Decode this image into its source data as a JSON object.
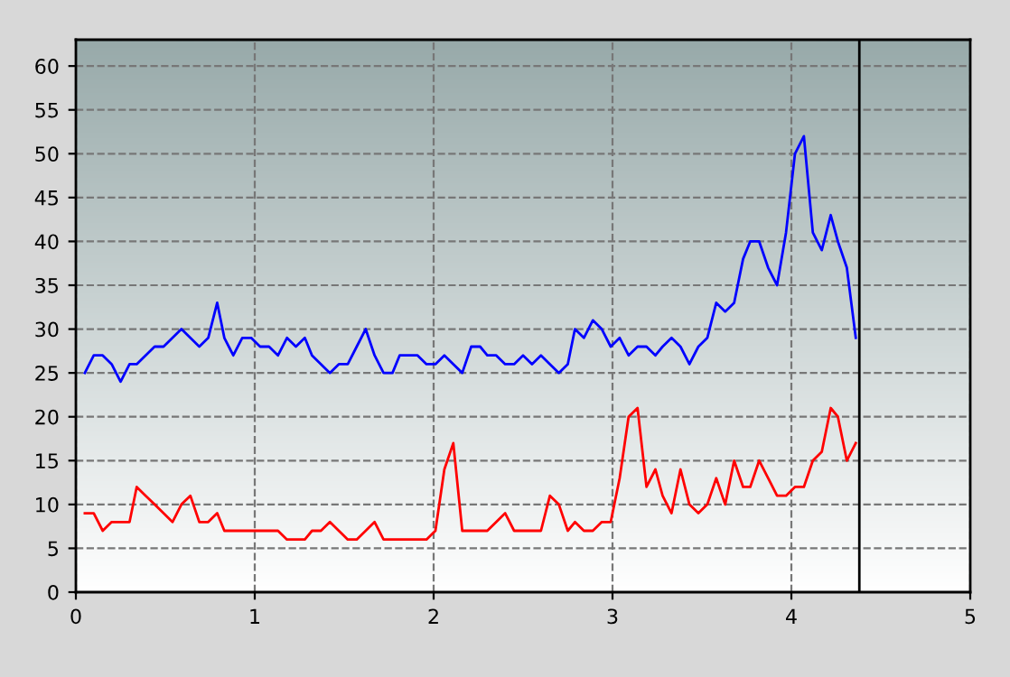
{
  "chart_data": {
    "type": "line",
    "xlim": [
      0,
      5
    ],
    "ylim": [
      0,
      63
    ],
    "xticks": [
      0,
      1,
      2,
      3,
      4,
      5
    ],
    "yticks": [
      0,
      5,
      10,
      15,
      20,
      25,
      30,
      35,
      40,
      45,
      50,
      55,
      60
    ],
    "grid": true,
    "marker": "none",
    "line_style": "solid",
    "x": [
      0.05,
      0.1,
      0.15,
      0.2,
      0.25,
      0.3,
      0.34,
      0.39,
      0.44,
      0.49,
      0.54,
      0.59,
      0.64,
      0.69,
      0.74,
      0.79,
      0.83,
      0.88,
      0.93,
      0.98,
      1.03,
      1.08,
      1.13,
      1.18,
      1.23,
      1.28,
      1.32,
      1.37,
      1.42,
      1.47,
      1.52,
      1.57,
      1.62,
      1.67,
      1.72,
      1.77,
      1.81,
      1.86,
      1.91,
      1.96,
      2.01,
      2.06,
      2.11,
      2.16,
      2.21,
      2.26,
      2.3,
      2.35,
      2.4,
      2.45,
      2.5,
      2.55,
      2.6,
      2.65,
      2.7,
      2.75,
      2.79,
      2.84,
      2.89,
      2.94,
      2.99,
      3.04,
      3.09,
      3.14,
      3.19,
      3.24,
      3.28,
      3.33,
      3.38,
      3.43,
      3.48,
      3.53,
      3.58,
      3.63,
      3.68,
      3.73,
      3.77,
      3.82,
      3.87,
      3.92,
      3.97,
      4.02,
      4.07,
      4.12,
      4.17,
      4.22,
      4.26,
      4.31,
      4.36
    ],
    "series": [
      {
        "color": "#0000ff",
        "values": [
          25,
          27,
          27,
          26,
          24,
          26,
          26,
          27,
          28,
          28,
          29,
          30,
          29,
          28,
          29,
          33,
          29,
          27,
          29,
          29,
          28,
          28,
          27,
          29,
          28,
          29,
          27,
          26,
          25,
          26,
          26,
          28,
          30,
          27,
          25,
          25,
          27,
          27,
          27,
          26,
          26,
          27,
          26,
          25,
          28,
          28,
          27,
          27,
          26,
          26,
          27,
          26,
          27,
          26,
          25,
          26,
          30,
          29,
          31,
          30,
          28,
          29,
          27,
          28,
          28,
          27,
          28,
          29,
          28,
          26,
          28,
          29,
          33,
          32,
          33,
          38,
          40,
          40,
          37,
          35,
          41,
          50,
          52,
          41,
          39,
          43,
          40,
          37,
          29
        ]
      },
      {
        "color": "#ff0000",
        "values": [
          9,
          9,
          7,
          8,
          8,
          8,
          12,
          11,
          10,
          9,
          8,
          10,
          11,
          8,
          8,
          9,
          7,
          7,
          7,
          7,
          7,
          7,
          7,
          6,
          6,
          6,
          7,
          7,
          8,
          7,
          6,
          6,
          7,
          8,
          6,
          6,
          6,
          6,
          6,
          6,
          7,
          14,
          17,
          7,
          7,
          7,
          7,
          8,
          9,
          7,
          7,
          7,
          7,
          11,
          10,
          7,
          8,
          7,
          7,
          8,
          8,
          13,
          20,
          21,
          12,
          14,
          11,
          9,
          14,
          10,
          9,
          10,
          13,
          10,
          15,
          12,
          12,
          15,
          13,
          11,
          11,
          12,
          12,
          15,
          16,
          21,
          20,
          15,
          17
        ]
      }
    ],
    "ref_lines": [
      {
        "axis": "x",
        "value": 4.38,
        "color": "#000000",
        "line_style": "solid"
      }
    ]
  }
}
